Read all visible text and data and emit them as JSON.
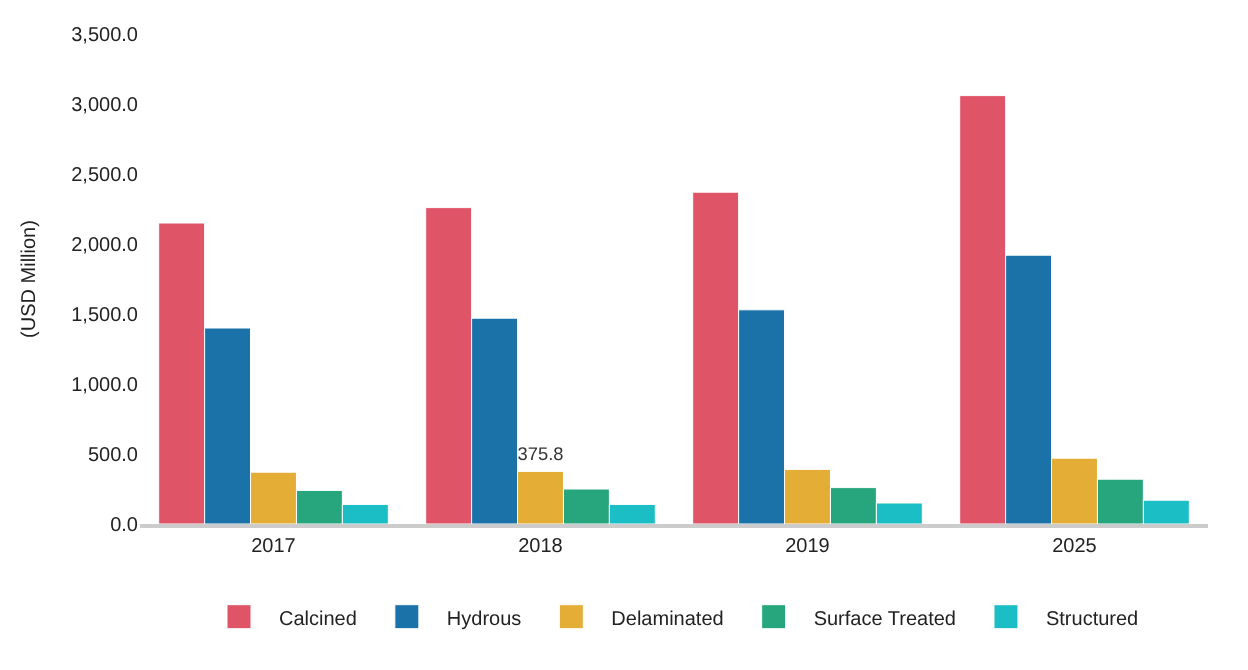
{
  "chart_data": {
    "type": "bar",
    "ylabel": "(USD Million)",
    "categories": [
      "2017",
      "2018",
      "2019",
      "2025"
    ],
    "series": [
      {
        "name": "Calcined",
        "color": "#e05468",
        "values": [
          2150,
          2260,
          2370,
          3060
        ]
      },
      {
        "name": "Hydrous",
        "color": "#1a72a8",
        "values": [
          1400,
          1470,
          1530,
          1920
        ]
      },
      {
        "name": "Delaminated",
        "color": "#e4ae36",
        "values": [
          370,
          375.8,
          390,
          470
        ],
        "value_labels": [
          null,
          "375.8",
          null,
          null
        ]
      },
      {
        "name": "Surface Treated",
        "color": "#27a57c",
        "values": [
          240,
          250,
          260,
          320
        ]
      },
      {
        "name": "Structured",
        "color": "#1bbec4",
        "values": [
          140,
          140,
          150,
          170
        ]
      }
    ],
    "ylim": [
      0,
      3500
    ],
    "yticks": [
      {
        "value": 0,
        "label": "0.0"
      },
      {
        "value": 500,
        "label": "500.0"
      },
      {
        "value": 1000,
        "label": "1,000.0"
      },
      {
        "value": 1500,
        "label": "1,500.0"
      },
      {
        "value": 2000,
        "label": "2,000.0"
      },
      {
        "value": 2500,
        "label": "2,500.0"
      },
      {
        "value": 3000,
        "label": "3,000.0"
      },
      {
        "value": 3500,
        "label": "3,500.0"
      }
    ],
    "legend": "bottom"
  }
}
